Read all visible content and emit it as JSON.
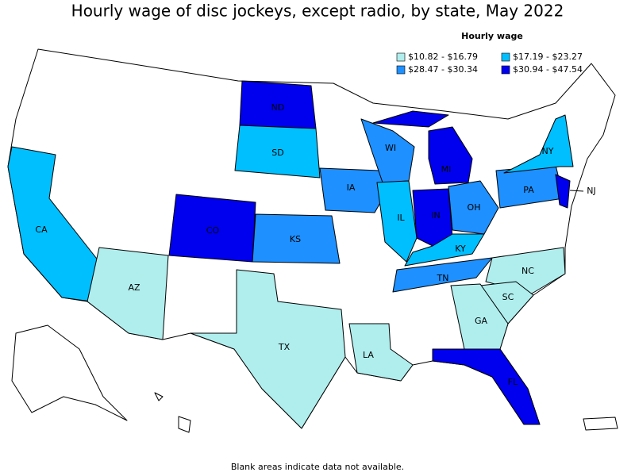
{
  "title": "Hourly wage of disc jockeys, except radio, by state, May 2022",
  "legend": {
    "title": "Hourly wage",
    "items": [
      {
        "label": "$10.82 - $16.79",
        "color": "#b0eeee"
      },
      {
        "label": "$17.19 - $23.27",
        "color": "#00bfff"
      },
      {
        "label": "$28.47 - $30.34",
        "color": "#1e90ff"
      },
      {
        "label": "$30.94 - $47.54",
        "color": "#0000ee"
      }
    ]
  },
  "states": [
    {
      "label": "ND",
      "legend_index": 3
    },
    {
      "label": "SD",
      "legend_index": 1
    },
    {
      "label": "CO",
      "legend_index": 3
    },
    {
      "label": "KS",
      "legend_index": 2
    },
    {
      "label": "IA",
      "legend_index": 2
    },
    {
      "label": "WI",
      "legend_index": 2
    },
    {
      "label": "MI",
      "legend_index": 3
    },
    {
      "label": "IL",
      "legend_index": 1
    },
    {
      "label": "IN",
      "legend_index": 3
    },
    {
      "label": "OH",
      "legend_index": 2
    },
    {
      "label": "KY",
      "legend_index": 1
    },
    {
      "label": "TN",
      "legend_index": 2
    },
    {
      "label": "PA",
      "legend_index": 2
    },
    {
      "label": "NY",
      "legend_index": 1
    },
    {
      "label": "NJ",
      "legend_index": 3
    },
    {
      "label": "CA",
      "legend_index": 1
    },
    {
      "label": "AZ",
      "legend_index": 0
    },
    {
      "label": "TX",
      "legend_index": 0
    },
    {
      "label": "LA",
      "legend_index": 0
    },
    {
      "label": "NC",
      "legend_index": 0
    },
    {
      "label": "SC",
      "legend_index": 0
    },
    {
      "label": "GA",
      "legend_index": 0
    },
    {
      "label": "FL",
      "legend_index": 3
    }
  ],
  "footnote": "Blank areas indicate data not available."
}
